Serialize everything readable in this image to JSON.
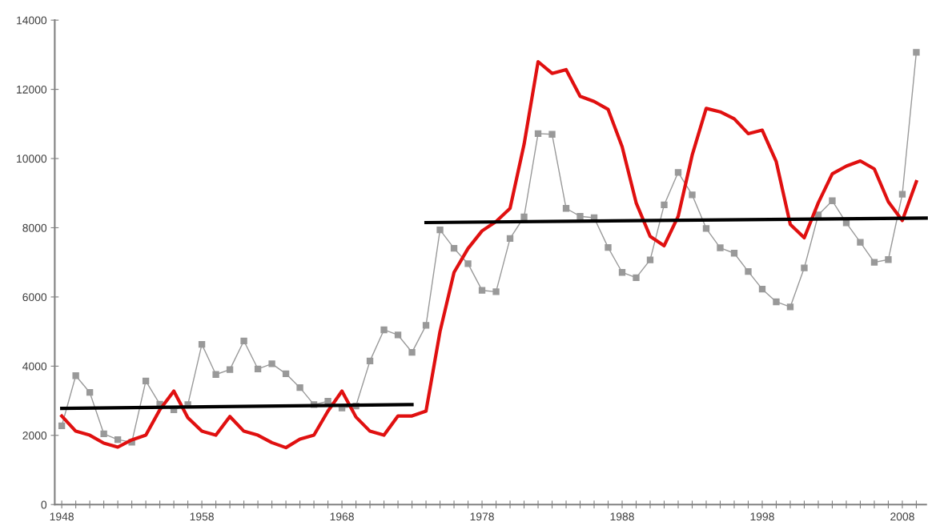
{
  "chart_data": {
    "type": "line",
    "x": [
      1948,
      1949,
      1950,
      1951,
      1952,
      1953,
      1954,
      1955,
      1956,
      1957,
      1958,
      1959,
      1960,
      1961,
      1962,
      1963,
      1964,
      1965,
      1966,
      1967,
      1968,
      1969,
      1970,
      1971,
      1972,
      1973,
      1974,
      1975,
      1976,
      1977,
      1978,
      1979,
      1980,
      1981,
      1982,
      1983,
      1984,
      1985,
      1986,
      1987,
      1988,
      1989,
      1990,
      1991,
      1992,
      1993,
      1994,
      1995,
      1996,
      1997,
      1998,
      1999,
      2000,
      2001,
      2002,
      2003,
      2004,
      2005,
      2006,
      2007,
      2008,
      2009
    ],
    "series": [
      {
        "color": "#999999",
        "marker": "square",
        "values": [
          2275,
          3725,
          3240,
          2045,
          1875,
          1800,
          3570,
          2900,
          2740,
          2890,
          4630,
          3760,
          3900,
          4730,
          3920,
          4070,
          3780,
          3380,
          2890,
          2985,
          2790,
          2850,
          4150,
          5050,
          4900,
          4400,
          5180,
          7940,
          7405,
          6960,
          6190,
          6150,
          7690,
          8315,
          10720,
          10700,
          8560,
          8330,
          8290,
          7430,
          6710,
          6555,
          7070,
          8660,
          9600,
          8950,
          7980,
          7420,
          7265,
          6735,
          6225,
          5860,
          5710,
          6840,
          8370,
          8780,
          8140,
          7580,
          7000,
          7080,
          8970,
          13070
        ]
      },
      {
        "color": "#e01010",
        "marker": "none",
        "values": [
          2560,
          2120,
          2005,
          1775,
          1660,
          1870,
          2005,
          2740,
          3280,
          2510,
          2120,
          2005,
          2545,
          2120,
          2005,
          1790,
          1645,
          1890,
          2005,
          2700,
          3280,
          2530,
          2120,
          2005,
          2560,
          2560,
          2700,
          5000,
          6710,
          7400,
          7910,
          8180,
          8560,
          10410,
          12800,
          12460,
          12570,
          11800,
          11650,
          11420,
          10340,
          8720,
          7750,
          7480,
          8330,
          10100,
          11450,
          11350,
          11150,
          10720,
          10820,
          9910,
          8100,
          7710,
          8720,
          9560,
          9780,
          9930,
          9700,
          8750,
          8210,
          9330
        ]
      },
      {
        "color": "#000000",
        "marker": "none",
        "x": [
          1948,
          1973
        ],
        "values": [
          2780,
          2890
        ]
      },
      {
        "color": "#000000",
        "marker": "none",
        "x": [
          1974,
          2009.7
        ],
        "values": [
          8150,
          8280
        ]
      }
    ],
    "xlim": [
      1947.5,
      2009.7
    ],
    "xticks": [
      {
        "value": 1948,
        "label": "1948"
      },
      {
        "value": 1949,
        "label": null
      },
      {
        "value": 1950,
        "label": null
      },
      {
        "value": 1951,
        "label": null
      },
      {
        "value": 1952,
        "label": null
      },
      {
        "value": 1953,
        "label": null
      },
      {
        "value": 1954,
        "label": null
      },
      {
        "value": 1955,
        "label": null
      },
      {
        "value": 1956,
        "label": null
      },
      {
        "value": 1957,
        "label": null
      },
      {
        "value": 1958,
        "label": "1958"
      },
      {
        "value": 1959,
        "label": null
      },
      {
        "value": 1960,
        "label": null
      },
      {
        "value": 1961,
        "label": null
      },
      {
        "value": 1962,
        "label": null
      },
      {
        "value": 1963,
        "label": null
      },
      {
        "value": 1964,
        "label": null
      },
      {
        "value": 1965,
        "label": null
      },
      {
        "value": 1966,
        "label": null
      },
      {
        "value": 1967,
        "label": null
      },
      {
        "value": 1968,
        "label": "1968"
      },
      {
        "value": 1969,
        "label": null
      },
      {
        "value": 1970,
        "label": null
      },
      {
        "value": 1971,
        "label": null
      },
      {
        "value": 1972,
        "label": null
      },
      {
        "value": 1973,
        "label": null
      },
      {
        "value": 1974,
        "label": null
      },
      {
        "value": 1975,
        "label": null
      },
      {
        "value": 1976,
        "label": null
      },
      {
        "value": 1977,
        "label": null
      },
      {
        "value": 1978,
        "label": "1978"
      },
      {
        "value": 1979,
        "label": null
      },
      {
        "value": 1980,
        "label": null
      },
      {
        "value": 1981,
        "label": null
      },
      {
        "value": 1982,
        "label": null
      },
      {
        "value": 1983,
        "label": null
      },
      {
        "value": 1984,
        "label": null
      },
      {
        "value": 1985,
        "label": null
      },
      {
        "value": 1986,
        "label": null
      },
      {
        "value": 1987,
        "label": null
      },
      {
        "value": 1988,
        "label": "1988"
      },
      {
        "value": 1989,
        "label": null
      },
      {
        "value": 1990,
        "label": null
      },
      {
        "value": 1991,
        "label": null
      },
      {
        "value": 1992,
        "label": null
      },
      {
        "value": 1993,
        "label": null
      },
      {
        "value": 1994,
        "label": null
      },
      {
        "value": 1995,
        "label": null
      },
      {
        "value": 1996,
        "label": null
      },
      {
        "value": 1997,
        "label": null
      },
      {
        "value": 1998,
        "label": "1998"
      },
      {
        "value": 1999,
        "label": null
      },
      {
        "value": 2000,
        "label": null
      },
      {
        "value": 2001,
        "label": null
      },
      {
        "value": 2002,
        "label": null
      },
      {
        "value": 2003,
        "label": null
      },
      {
        "value": 2004,
        "label": null
      },
      {
        "value": 2005,
        "label": null
      },
      {
        "value": 2006,
        "label": null
      },
      {
        "value": 2007,
        "label": null
      },
      {
        "value": 2008,
        "label": "2008"
      },
      {
        "value": 2009,
        "label": null
      }
    ],
    "ylim": [
      0,
      14000
    ],
    "yticks": [
      0,
      2000,
      4000,
      6000,
      8000,
      10000,
      12000,
      14000
    ],
    "grid": false,
    "legend": false
  }
}
